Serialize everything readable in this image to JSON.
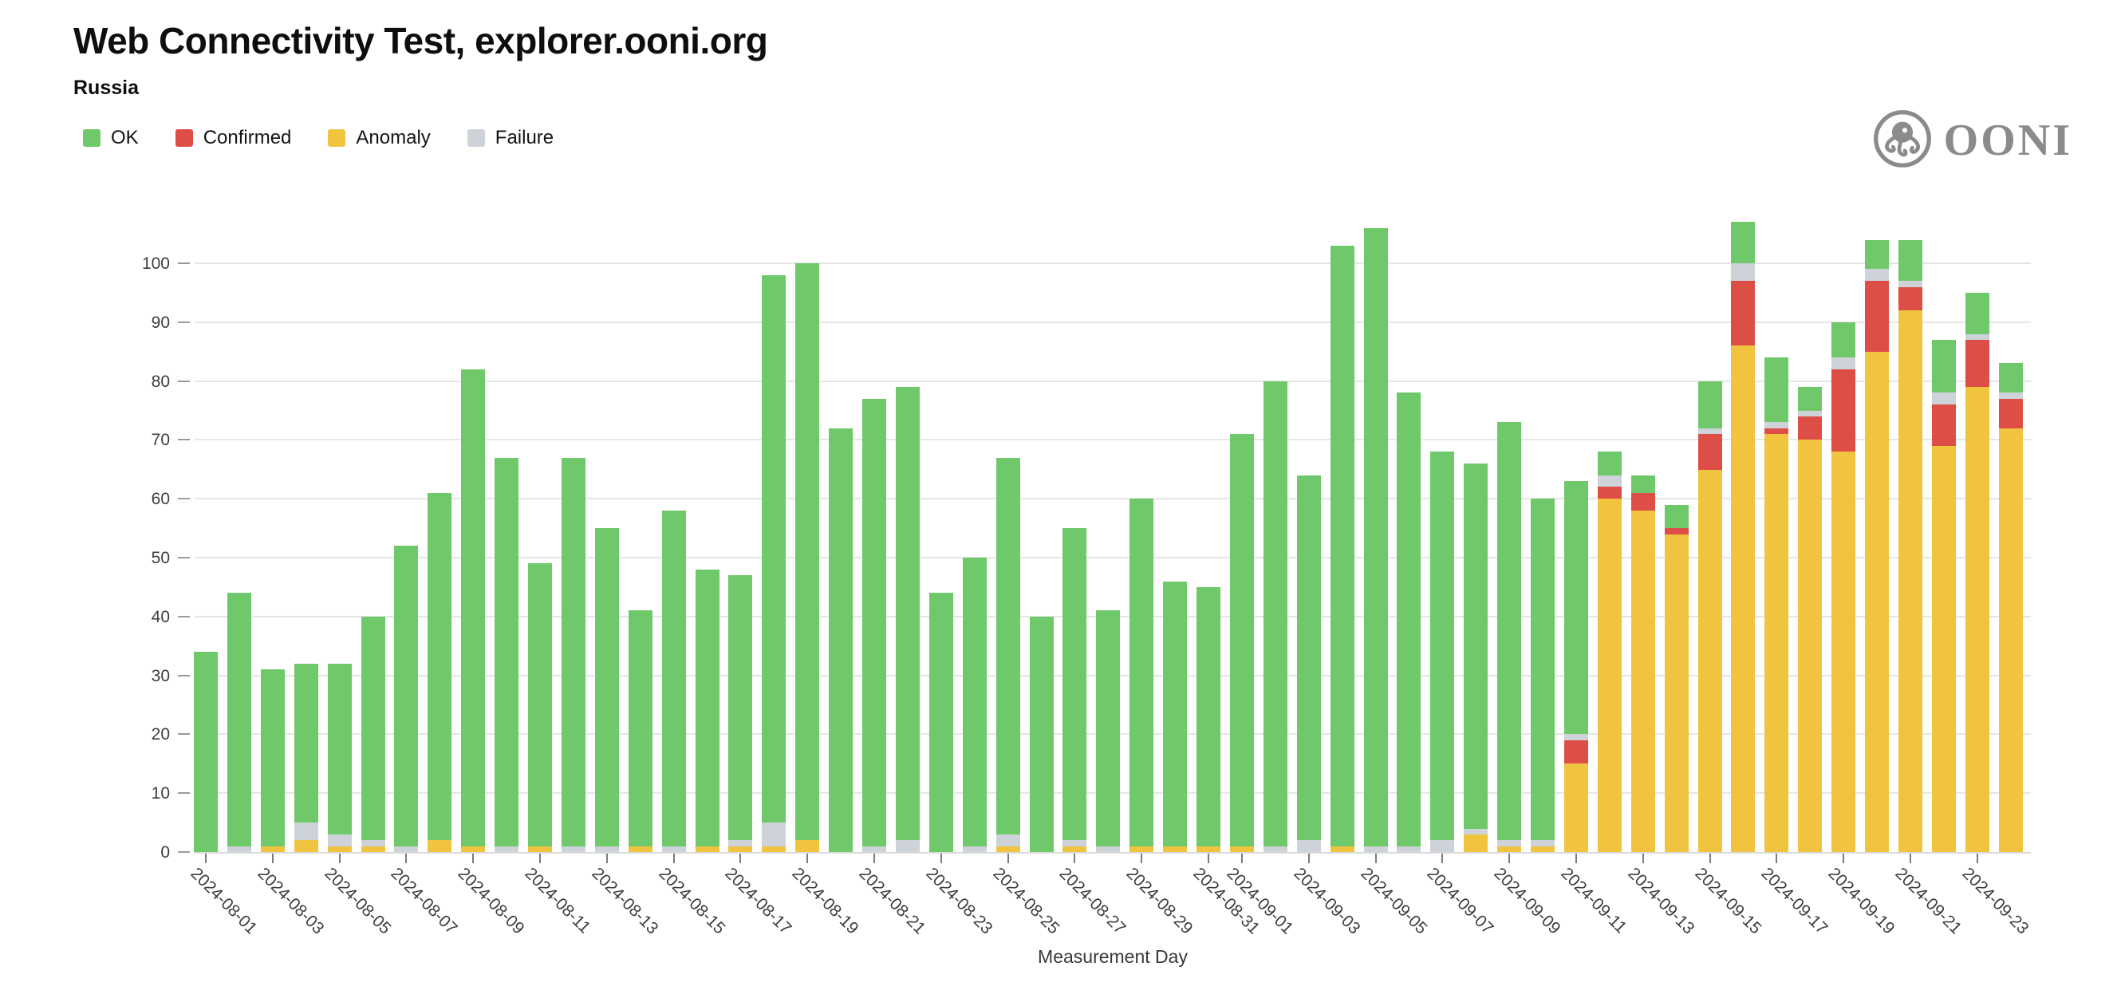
{
  "header": {
    "title": "Web Connectivity Test, explorer.ooni.org",
    "subtitle": "Russia"
  },
  "logo": {
    "text": "OONI",
    "color": "#8b8b8b"
  },
  "legend": [
    {
      "name": "OK",
      "label": "OK",
      "color": "#6fc86a"
    },
    {
      "name": "Confirmed",
      "label": "Confirmed",
      "color": "#dc4e46"
    },
    {
      "name": "Anomaly",
      "label": "Anomaly",
      "color": "#f1c440"
    },
    {
      "name": "Failure",
      "label": "Failure",
      "color": "#cdd3d9"
    }
  ],
  "chart_data": {
    "type": "bar",
    "stacked": true,
    "title": "Web Connectivity Test, explorer.ooni.org",
    "subtitle": "Russia",
    "xlabel": "Measurement Day",
    "ylabel": "",
    "ylim": [
      0,
      110
    ],
    "yticks": [
      0,
      10,
      20,
      30,
      40,
      50,
      60,
      70,
      80,
      90,
      100
    ],
    "grid": true,
    "legend_position": "top-left",
    "stack_order": [
      "Anomaly",
      "Confirmed",
      "Failure",
      "OK"
    ],
    "categories": [
      "2024-08-01",
      "2024-08-02",
      "2024-08-03",
      "2024-08-04",
      "2024-08-05",
      "2024-08-06",
      "2024-08-07",
      "2024-08-08",
      "2024-08-09",
      "2024-08-10",
      "2024-08-11",
      "2024-08-12",
      "2024-08-13",
      "2024-08-14",
      "2024-08-15",
      "2024-08-16",
      "2024-08-17",
      "2024-08-18",
      "2024-08-19",
      "2024-08-20",
      "2024-08-21",
      "2024-08-22",
      "2024-08-23",
      "2024-08-24",
      "2024-08-25",
      "2024-08-26",
      "2024-08-27",
      "2024-08-28",
      "2024-08-29",
      "2024-08-30",
      "2024-08-31",
      "2024-09-01",
      "2024-09-02",
      "2024-09-03",
      "2024-09-04",
      "2024-09-05",
      "2024-09-06",
      "2024-09-07",
      "2024-09-08",
      "2024-09-09",
      "2024-09-10",
      "2024-09-11",
      "2024-09-12",
      "2024-09-13",
      "2024-09-14",
      "2024-09-15",
      "2024-09-16",
      "2024-09-17",
      "2024-09-18",
      "2024-09-19",
      "2024-09-20",
      "2024-09-21",
      "2024-09-22",
      "2024-09-23",
      "2024-09-24"
    ],
    "x_tick_labels": [
      "2024-08-01",
      "2024-08-03",
      "2024-08-05",
      "2024-08-07",
      "2024-08-09",
      "2024-08-11",
      "2024-08-13",
      "2024-08-15",
      "2024-08-17",
      "2024-08-19",
      "2024-08-21",
      "2024-08-23",
      "2024-08-25",
      "2024-08-27",
      "2024-08-29",
      "2024-08-31",
      "2024-09-01",
      "2024-09-03",
      "2024-09-05",
      "2024-09-07",
      "2024-09-09",
      "2024-09-11",
      "2024-09-13",
      "2024-09-15",
      "2024-09-17",
      "2024-09-19",
      "2024-09-21",
      "2024-09-23"
    ],
    "series": [
      {
        "name": "OK",
        "color": "#6fc86a",
        "values": [
          34,
          43,
          30,
          27,
          29,
          38,
          51,
          59,
          81,
          66,
          48,
          66,
          54,
          40,
          57,
          47,
          45,
          93,
          98,
          72,
          76,
          77,
          44,
          49,
          64,
          40,
          53,
          40,
          59,
          45,
          44,
          70,
          79,
          62,
          102,
          105,
          77,
          66,
          62,
          71,
          58,
          43,
          4,
          3,
          4,
          8,
          7,
          11,
          4,
          6,
          5,
          7,
          9,
          7,
          5
        ]
      },
      {
        "name": "Confirmed",
        "color": "#dc4e46",
        "values": [
          0,
          0,
          0,
          0,
          0,
          0,
          0,
          0,
          0,
          0,
          0,
          0,
          0,
          0,
          0,
          0,
          0,
          0,
          0,
          0,
          0,
          0,
          0,
          0,
          0,
          0,
          0,
          0,
          0,
          0,
          0,
          0,
          0,
          0,
          0,
          0,
          0,
          0,
          0,
          0,
          0,
          4,
          2,
          3,
          1,
          6,
          11,
          1,
          4,
          14,
          12,
          4,
          7,
          8,
          5
        ]
      },
      {
        "name": "Anomaly",
        "color": "#f1c440",
        "values": [
          0,
          0,
          1,
          2,
          1,
          1,
          0,
          2,
          1,
          0,
          1,
          0,
          0,
          1,
          0,
          1,
          1,
          1,
          2,
          0,
          0,
          0,
          0,
          0,
          1,
          0,
          1,
          0,
          1,
          1,
          1,
          1,
          0,
          0,
          1,
          0,
          0,
          0,
          3,
          1,
          1,
          15,
          60,
          58,
          54,
          65,
          86,
          71,
          70,
          68,
          85,
          92,
          69,
          79,
          72
        ]
      },
      {
        "name": "Failure",
        "color": "#cdd3d9",
        "values": [
          0,
          1,
          0,
          3,
          2,
          1,
          1,
          0,
          0,
          1,
          0,
          1,
          1,
          0,
          1,
          0,
          1,
          4,
          0,
          0,
          1,
          2,
          0,
          1,
          2,
          0,
          1,
          1,
          0,
          0,
          0,
          0,
          1,
          2,
          0,
          1,
          1,
          2,
          1,
          1,
          1,
          1,
          2,
          0,
          0,
          1,
          3,
          1,
          1,
          2,
          2,
          1,
          2,
          1,
          1
        ]
      }
    ]
  }
}
